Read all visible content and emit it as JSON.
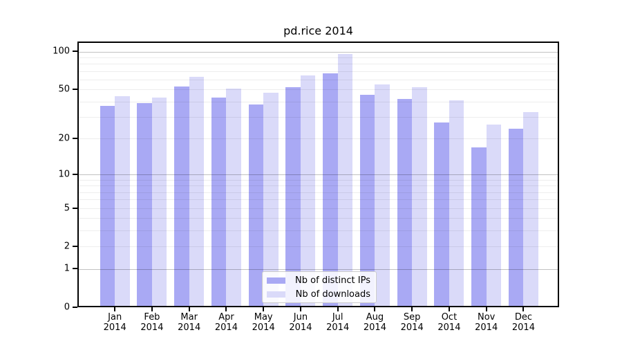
{
  "title": "pd.rice 2014",
  "colors": {
    "distinct_ips": "#a9a9f4",
    "downloads": "#dadaf9",
    "axis": "#000000",
    "grid_major": "#c2c2c2",
    "grid_minor": "#ececec",
    "background": "#ffffff"
  },
  "legend": {
    "items": [
      {
        "label": "Nb of distinct IPs"
      },
      {
        "label": "Nb of downloads"
      }
    ]
  },
  "chart_data": {
    "type": "bar",
    "title": "pd.rice 2014",
    "categories": [
      "Jan 2014",
      "Feb 2014",
      "Mar 2014",
      "Apr 2014",
      "May 2014",
      "Jun 2014",
      "Jul 2014",
      "Aug 2014",
      "Sep 2014",
      "Oct 2014",
      "Nov 2014",
      "Dec 2014"
    ],
    "month_labels": [
      "Jan",
      "Feb",
      "Mar",
      "Apr",
      "May",
      "Jun",
      "Jul",
      "Aug",
      "Sep",
      "Oct",
      "Nov",
      "Dec"
    ],
    "year_label": "2014",
    "series": [
      {
        "name": "Nb of distinct IPs",
        "color": "#a9a9f4",
        "values": [
          37,
          39,
          53,
          43,
          38,
          52,
          67,
          45,
          42,
          27,
          17,
          24
        ]
      },
      {
        "name": "Nb of downloads",
        "color": "#dadaf9",
        "values": [
          44,
          43,
          63,
          51,
          47,
          65,
          96,
          55,
          52,
          41,
          26,
          33
        ]
      }
    ],
    "yscale": "log1p",
    "ylim": [
      0,
      120
    ],
    "yticks": [
      0,
      1,
      2,
      5,
      10,
      20,
      50,
      100
    ],
    "major_gridlines": [
      1,
      10,
      100
    ],
    "minor_gridlines": [
      2,
      3,
      4,
      5,
      6,
      7,
      8,
      9,
      20,
      30,
      40,
      50,
      60,
      70,
      80,
      90
    ],
    "grid": "on",
    "xlabel": "",
    "ylabel": "",
    "legend_position": "lower-center"
  }
}
